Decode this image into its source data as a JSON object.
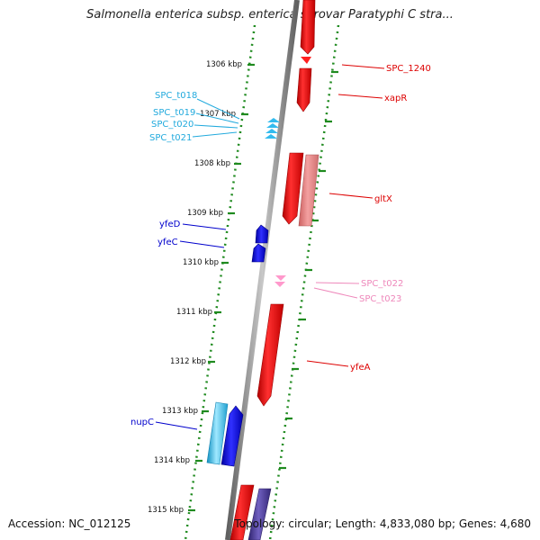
{
  "title": "Salmonella enterica subsp. enterica serovar Paratyphi C stra...",
  "footer": {
    "accession": "Accession: NC_012125",
    "summary": "Topology: circular; Length: 4,833,080 bp; Genes: 4,680"
  },
  "colors": {
    "backbone": "#808080",
    "track_dots": "#1f8a1f",
    "cds_red": "#ff0000",
    "cds_pink": "#e88080",
    "trna_cyan": "#33bbee",
    "cds_blue": "#0000ee",
    "misc_pink": "#ff88cc",
    "cds_purple": "#4a3f9a"
  },
  "ruler": {
    "ticks": [
      "1306 kbp",
      "1307 kbp",
      "1308 kbp",
      "1309 kbp",
      "1310 kbp",
      "1311 kbp",
      "1312 kbp",
      "1313 kbp",
      "1314 kbp",
      "1315 kbp"
    ]
  },
  "features": [
    {
      "label": "SPC_1240",
      "color": "#dd0000",
      "strand": "+"
    },
    {
      "label": "xapR",
      "color": "#dd0000",
      "strand": "+"
    },
    {
      "label": "SPC_t018",
      "color": "#22aadd",
      "strand": "-"
    },
    {
      "label": "SPC_t019",
      "color": "#22aadd",
      "strand": "-"
    },
    {
      "label": "SPC_t020",
      "color": "#22aadd",
      "strand": "-"
    },
    {
      "label": "SPC_t021",
      "color": "#22aadd",
      "strand": "-"
    },
    {
      "label": "gltX",
      "color": "#dd0000",
      "strand": "+"
    },
    {
      "label": "yfeD",
      "color": "#0000cc",
      "strand": "-"
    },
    {
      "label": "yfeC",
      "color": "#0000cc",
      "strand": "-"
    },
    {
      "label": "SPC_t022",
      "color": "#ee88bb",
      "strand": "+"
    },
    {
      "label": "SPC_t023",
      "color": "#ee88bb",
      "strand": "+"
    },
    {
      "label": "yfeA",
      "color": "#dd0000",
      "strand": "+"
    },
    {
      "label": "nupC",
      "color": "#0000cc",
      "strand": "-"
    }
  ]
}
